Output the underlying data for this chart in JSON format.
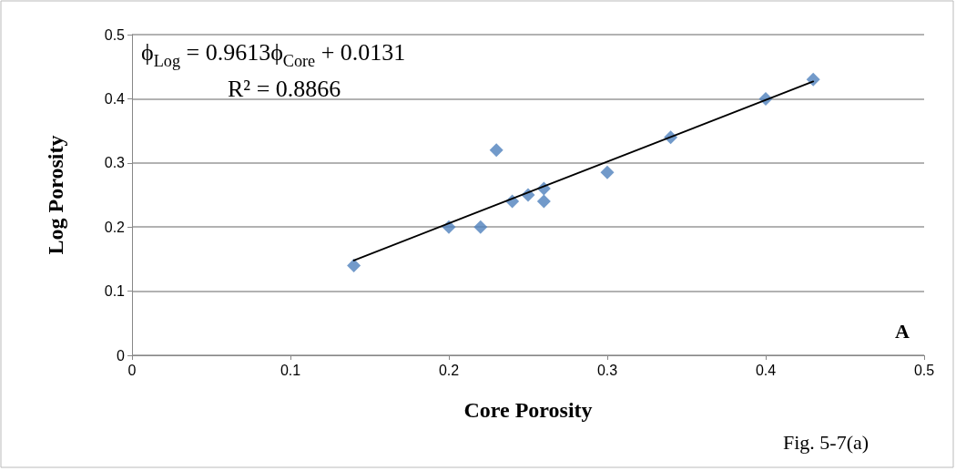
{
  "chart_data": {
    "type": "scatter",
    "xlabel": "Core Porosity",
    "ylabel": "Log Porosity",
    "annotations": [
      "ϕ$_{Log}$ = 0.9613ϕ$_{Core}$ + 0.0131",
      "R² = 0.8866",
      "A",
      "Fig. 5-7(a)"
    ],
    "series": [
      {
        "color": "#4f81bd",
        "marker": "diamond",
        "x": [
          0.14,
          0.2,
          0.22,
          0.23,
          0.24,
          0.25,
          0.26,
          0.26,
          0.3,
          0.34,
          0.4,
          0.43
        ],
        "values": [
          0.14,
          0.2,
          0.2,
          0.32,
          0.24,
          0.25,
          0.26,
          0.24,
          0.285,
          0.34,
          0.4,
          0.43
        ]
      },
      {
        "type": "line",
        "color": "#000000",
        "marker": "none",
        "x": [
          0.14,
          0.43
        ],
        "values": [
          0.148,
          0.427
        ]
      }
    ],
    "xlim": [
      0,
      0.5
    ],
    "xticks": [
      0,
      0.1,
      0.2,
      0.3,
      0.4,
      0.5
    ],
    "ylim": [
      0,
      0.5
    ],
    "yticks": [
      0,
      0.1,
      0.2,
      0.3,
      0.4,
      0.5
    ],
    "grid": "y"
  }
}
